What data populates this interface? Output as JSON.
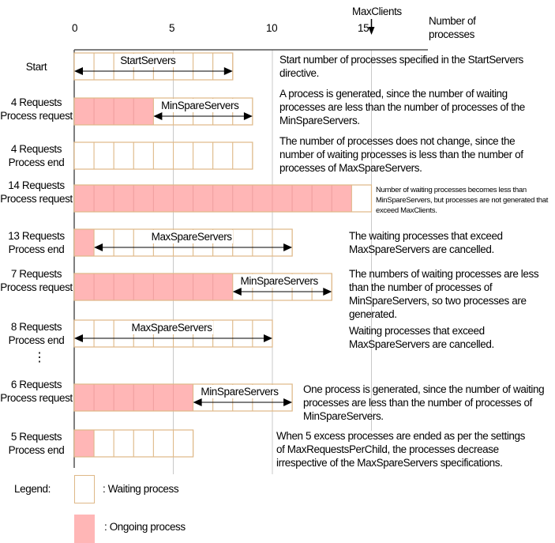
{
  "axis": {
    "ticks": [
      "0",
      "5",
      "10",
      "15"
    ],
    "title": "Number of processes",
    "max_label": "MaxClients",
    "max_value": 15
  },
  "colors": {
    "waiting_fill": "#ffffff",
    "ongoing_fill": "#ffb6b6",
    "cell_border": "#deb887",
    "grid": "#c8c8c8"
  },
  "rows": [
    {
      "label": "Start",
      "ongoing": 0,
      "waiting": 8,
      "arrow": {
        "from": 0,
        "to": 8,
        "label": "StartServers"
      },
      "note": "Start number of processes specified in the StartServers directive."
    },
    {
      "label": "4 Requests Process request",
      "ongoing": 4,
      "waiting": 5,
      "arrow": {
        "from": 4,
        "to": 9,
        "label": "MinSpareServers"
      },
      "note": "A process is generated, since the number of waiting processes are less than the number of processes of the MinSpareServers."
    },
    {
      "label": "4 Requests Process end",
      "ongoing": 0,
      "waiting": 9,
      "note": "The number of processes does not change, since the number of waiting processes is less than the number of processes of MaxSpareServers."
    },
    {
      "label": "14 Requests Process request",
      "ongoing": 14,
      "waiting": 1,
      "note": "Number of waiting processes becomes less than MinSpareServers, but processes are not generated that exceed MaxClients."
    },
    {
      "label": "13 Requests Process end",
      "ongoing": 1,
      "waiting": 10,
      "arrow": {
        "from": 1,
        "to": 11,
        "label": "MaxSpareServers"
      },
      "note": "The waiting processes that exceed MaxSpareServers are cancelled."
    },
    {
      "label": "7 Requests Process request",
      "ongoing": 8,
      "waiting": 5,
      "arrow": {
        "from": 8,
        "to": 13,
        "label": "MinSpareServers"
      },
      "note": "The numbers of waiting processes are less than the number of processes of MinSpareServers, so two processes are generated."
    },
    {
      "label": "8 Requests Process end",
      "ongoing": 0,
      "waiting": 10,
      "arrow": {
        "from": 0,
        "to": 10,
        "label": "MaxSpareServers"
      },
      "note": "Waiting processes that exceed MaxSpareServers are cancelled."
    },
    {
      "label": "6 Requests Process request",
      "ongoing": 6,
      "waiting": 5,
      "arrow": {
        "from": 6,
        "to": 11,
        "label": "MinSpareServers"
      },
      "note": "One process is generated, since the number of waiting processes are less than the number of processes of  MinSpareServers."
    },
    {
      "label": "5 Requests Process end",
      "ongoing": 1,
      "waiting": 5,
      "note": "When 5 excess processes are ended as per the settings of MaxRequestsPerChild, the processes decrease irrespective of the MaxSpareServers specifications."
    }
  ],
  "ellipsis": "⋮",
  "legend": {
    "title": "Legend:",
    "waiting": ": Waiting process",
    "ongoing": ": Ongoing process"
  }
}
